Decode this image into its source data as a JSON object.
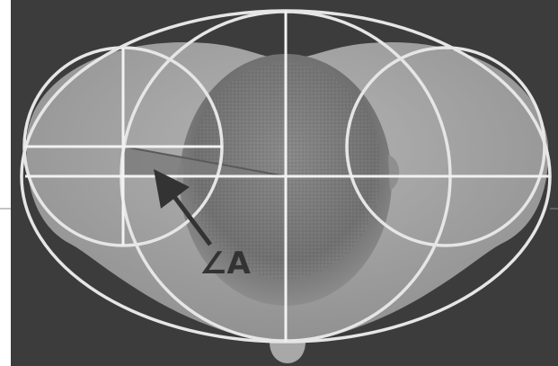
{
  "figure": {
    "angle_label": "∠A",
    "colors": {
      "background": "#3a3a3a",
      "guide_lines": "#e9e9e9",
      "arrow": "#333333",
      "angle_fill": "#7c7c7c",
      "shoulders": "#9f9f9f",
      "head": "#7a7a7a"
    }
  }
}
